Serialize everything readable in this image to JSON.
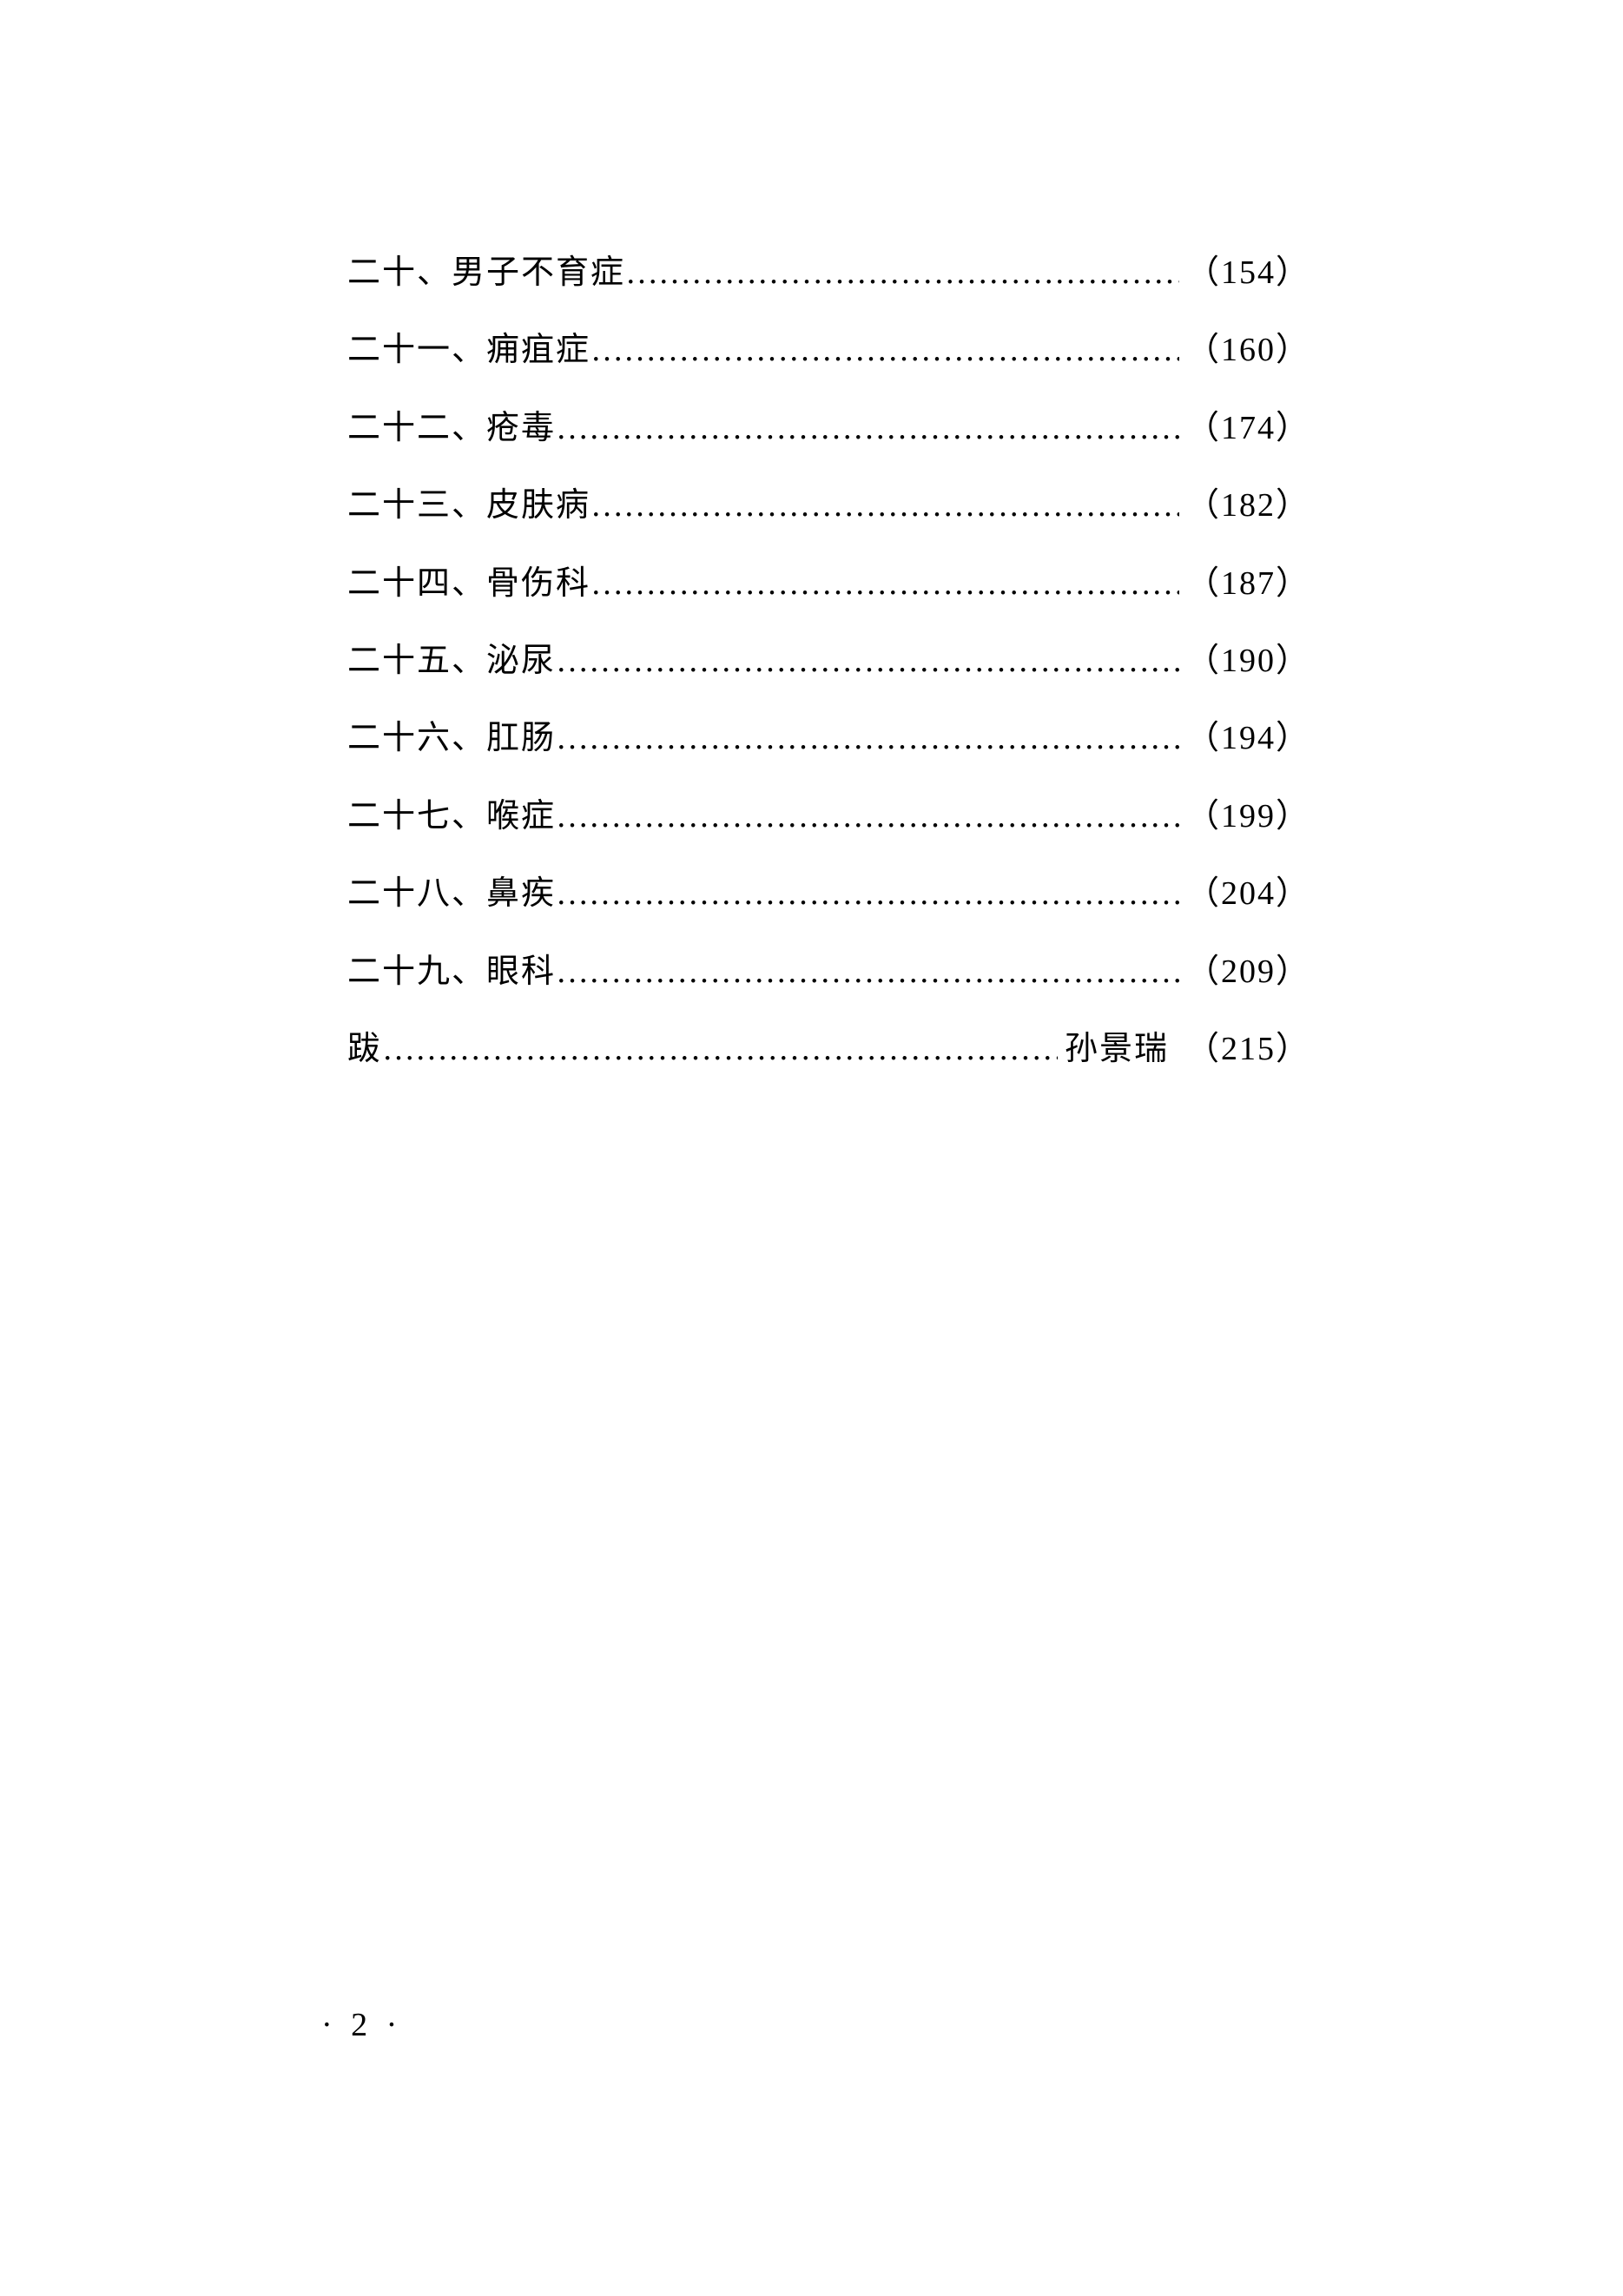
{
  "toc": {
    "text_color": "#000000",
    "background_color": "#ffffff",
    "font_size": 38,
    "line_spacing": 40,
    "entries": [
      {
        "label": "二十、男子不育症",
        "page": "（154）"
      },
      {
        "label": "二十一、痈疽症",
        "page": "（160）"
      },
      {
        "label": "二十二、疮毒",
        "page": "（174）"
      },
      {
        "label": "二十三、皮肤病",
        "page": "（182）"
      },
      {
        "label": "二十四、骨伤科",
        "page": "（187）"
      },
      {
        "label": "二十五、泌尿",
        "page": "（190）"
      },
      {
        "label": "二十六、肛肠",
        "page": "（194）"
      },
      {
        "label": "二十七、喉症",
        "page": "（199）"
      },
      {
        "label": "二十八、鼻疾",
        "page": "（204）"
      },
      {
        "label": "二十九、眼科",
        "page": "（209）"
      },
      {
        "label": "跋",
        "author": "孙景瑞",
        "page": "（215）"
      }
    ]
  },
  "page_footer": "· 2 ·",
  "dots_fill": "……………………………………………………………………………………"
}
